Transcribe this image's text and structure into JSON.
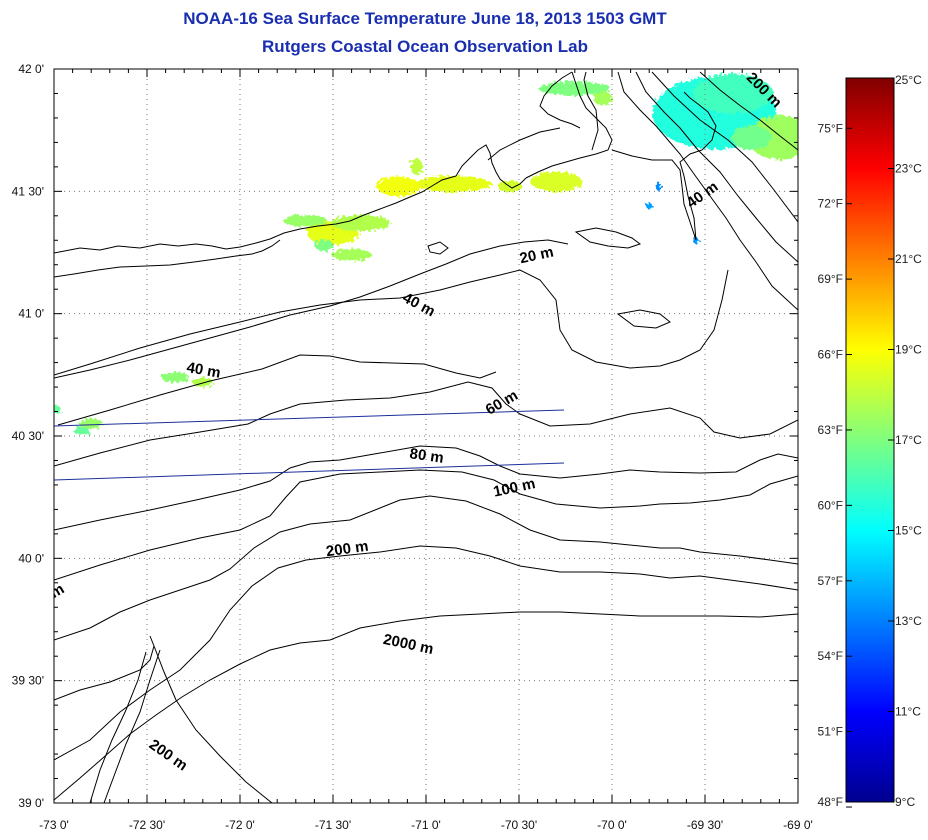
{
  "title": {
    "line1": "NOAA-16 Sea Surface Temperature June 18, 2013 1503 GMT",
    "line2": "Rutgers Coastal Ocean Observation Lab"
  },
  "axes": {
    "lon_ticks": [
      "-73 0'",
      "-72 30'",
      "-72 0'",
      "-71 30'",
      "-71 0'",
      "-70 30'",
      "-70 0'",
      "-69 30'",
      "-69 0'"
    ],
    "lat_ticks": [
      "42 0'",
      "41 30'",
      "41 0'",
      "40 30'",
      "40 0'",
      "39 30'",
      "39 0'"
    ],
    "lon_range": [
      -73,
      -69
    ],
    "lat_range": [
      39,
      42
    ]
  },
  "contour_labels": [
    {
      "text": "200 m",
      "lon": -69.2,
      "lat": 41.9,
      "angle": -45
    },
    {
      "text": "40 m",
      "lon": -69.5,
      "lat": 41.47,
      "angle": 35
    },
    {
      "text": "20 m",
      "lon": -70.4,
      "lat": 41.22,
      "angle": 12
    },
    {
      "text": "40 m",
      "lon": -71.05,
      "lat": 41.02,
      "angle": -28
    },
    {
      "text": "40 m",
      "lon": -72.2,
      "lat": 40.75,
      "angle": -10
    },
    {
      "text": "60 m",
      "lon": -70.58,
      "lat": 40.62,
      "angle": 30
    },
    {
      "text": "80 m",
      "lon": -71.0,
      "lat": 40.4,
      "angle": -8
    },
    {
      "text": "100 m",
      "lon": -70.52,
      "lat": 40.27,
      "angle": 12
    },
    {
      "text": "200 m",
      "lon": -71.42,
      "lat": 40.02,
      "angle": 8
    },
    {
      "text": "2000 m",
      "lon": -71.1,
      "lat": 39.63,
      "angle": -12
    },
    {
      "text": "200 m",
      "lon": -72.4,
      "lat": 39.18,
      "angle": -35
    },
    {
      "text": "m",
      "lon": -72.97,
      "lat": 39.85,
      "angle": 30
    }
  ],
  "colorbar": {
    "celsius": [
      "25°C",
      "23°C",
      "21°C",
      "19°C",
      "17°C",
      "15°C",
      "13°C",
      "11°C",
      "9°C"
    ],
    "fahrenheit": [
      "75°F",
      "72°F",
      "69°F",
      "66°F",
      "63°F",
      "60°F",
      "57°F",
      "54°F",
      "51°F",
      "48°F"
    ],
    "c_range": [
      9,
      25
    ]
  },
  "sst_patches": [
    {
      "lon": -69.45,
      "lat": 41.82,
      "tempC": 15.5,
      "rx": 62,
      "ry": 36
    },
    {
      "lon": -69.35,
      "lat": 41.9,
      "tempC": 16.0,
      "rx": 40,
      "ry": 20
    },
    {
      "lon": -69.1,
      "lat": 41.72,
      "tempC": 17.5,
      "rx": 32,
      "ry": 22
    },
    {
      "lon": -69.25,
      "lat": 41.72,
      "tempC": 16.8,
      "rx": 20,
      "ry": 12
    },
    {
      "lon": -70.2,
      "lat": 41.92,
      "tempC": 17.0,
      "rx": 36,
      "ry": 7
    },
    {
      "lon": -70.05,
      "lat": 41.88,
      "tempC": 17.6,
      "rx": 9,
      "ry": 7
    },
    {
      "lon": -70.3,
      "lat": 41.54,
      "tempC": 18.4,
      "rx": 26,
      "ry": 10
    },
    {
      "lon": -70.85,
      "lat": 41.53,
      "tempC": 18.6,
      "rx": 38,
      "ry": 8
    },
    {
      "lon": -71.15,
      "lat": 41.52,
      "tempC": 18.8,
      "rx": 22,
      "ry": 10
    },
    {
      "lon": -70.55,
      "lat": 41.52,
      "tempC": 18.3,
      "rx": 12,
      "ry": 6
    },
    {
      "lon": -71.5,
      "lat": 41.33,
      "tempC": 18.6,
      "rx": 26,
      "ry": 12
    },
    {
      "lon": -71.35,
      "lat": 41.37,
      "tempC": 17.8,
      "rx": 30,
      "ry": 8
    },
    {
      "lon": -71.65,
      "lat": 41.38,
      "tempC": 17.4,
      "rx": 22,
      "ry": 6
    },
    {
      "lon": -71.4,
      "lat": 41.24,
      "tempC": 17.6,
      "rx": 20,
      "ry": 6
    },
    {
      "lon": -71.55,
      "lat": 41.28,
      "tempC": 17.0,
      "rx": 9,
      "ry": 6
    },
    {
      "lon": -71.05,
      "lat": 41.6,
      "tempC": 18.0,
      "rx": 6,
      "ry": 8
    },
    {
      "lon": -72.35,
      "lat": 40.74,
      "tempC": 17.2,
      "rx": 14,
      "ry": 5
    },
    {
      "lon": -72.2,
      "lat": 40.72,
      "tempC": 17.8,
      "rx": 10,
      "ry": 5
    },
    {
      "lon": -72.8,
      "lat": 40.55,
      "tempC": 17.4,
      "rx": 12,
      "ry": 5
    },
    {
      "lon": -72.85,
      "lat": 40.52,
      "tempC": 16.6,
      "rx": 8,
      "ry": 4
    },
    {
      "lon": -72.99,
      "lat": 40.61,
      "tempC": 16.6,
      "rx": 5,
      "ry": 4
    },
    {
      "lon": -69.75,
      "lat": 41.52,
      "tempC": 13.2,
      "rx": 3,
      "ry": 4
    },
    {
      "lon": -69.55,
      "lat": 41.3,
      "tempC": 13.4,
      "rx": 3,
      "ry": 3
    },
    {
      "lon": -69.8,
      "lat": 41.44,
      "tempC": 13.5,
      "rx": 3,
      "ry": 3
    }
  ]
}
